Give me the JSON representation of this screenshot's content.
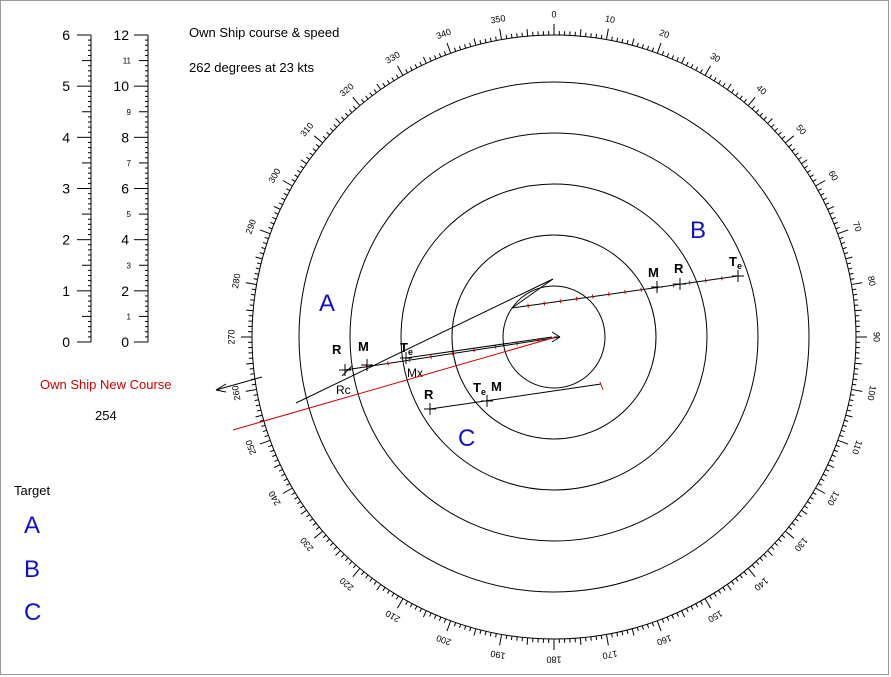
{
  "header": {
    "line1": "Own Ship course & speed",
    "line2": "262 degrees at 23 kts"
  },
  "new_course": {
    "label": "Own Ship New Course",
    "value": "254"
  },
  "legend": {
    "title": "Target",
    "items": [
      "A",
      "B",
      "C"
    ]
  },
  "scales": {
    "left_labels": [
      "6",
      "5",
      "4",
      "3",
      "2",
      "1",
      "0"
    ],
    "right_major_labels": [
      "12",
      "10",
      "8",
      "6",
      "4",
      "2",
      "0"
    ],
    "right_minor_labels": [
      "11",
      "9",
      "7",
      "5",
      "3",
      "1"
    ]
  },
  "compass": {
    "bearings": [
      0,
      10,
      20,
      30,
      40,
      50,
      60,
      70,
      80,
      90,
      100,
      110,
      120,
      130,
      140,
      150,
      160,
      170,
      180,
      190,
      200,
      210,
      220,
      230,
      240,
      250,
      260,
      270,
      280,
      290,
      300,
      310,
      320,
      330,
      340,
      350
    ]
  },
  "targets": {
    "A": {
      "name": "A",
      "markers": {
        "R": "R",
        "M": "M",
        "Te": "T",
        "Te_sub": "e",
        "Mx": "Mx",
        "Rc": "Rc"
      }
    },
    "B": {
      "name": "B",
      "markers": {
        "M": "M",
        "R": "R",
        "Te": "T",
        "Te_sub": "e"
      }
    },
    "C": {
      "name": "C",
      "markers": {
        "R": "R",
        "Te": "T",
        "Te_sub": "e",
        "M": "M"
      }
    }
  },
  "colors": {
    "target_text": "#1010c8",
    "new_course": "#cc0000",
    "lines": "#000000"
  }
}
